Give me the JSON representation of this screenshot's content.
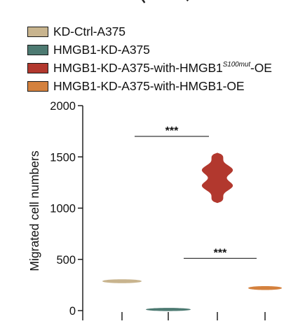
{
  "chart_data": {
    "type": "violin",
    "ylabel": "Migrated cell numbers",
    "ylim": [
      0,
      2000
    ],
    "yticks": [
      "0",
      "500",
      "1000",
      "1500",
      "2000"
    ],
    "cropped_header_glyphs": [
      "R",
      "r"
    ],
    "series": [
      {
        "name_parts": [
          "KD-Ctrl-A375"
        ],
        "color": "#c8b48e",
        "median": 288,
        "min": 262,
        "max": 312
      },
      {
        "name_parts": [
          "HMGB1-KD-A375"
        ],
        "color": "#4d7a72",
        "median": 5,
        "min": 0,
        "max": 22
      },
      {
        "name_parts": [
          "HMGB1-KD-A375-with-HMGB1",
          "S100mut",
          "-OE"
        ],
        "color": "#b2382e",
        "median": 1300,
        "min": 1050,
        "max": 1540
      },
      {
        "name_parts": [
          "HMGB1-KD-A375-with-HMGB1-OE"
        ],
        "color": "#d4813e",
        "median": 222,
        "min": 195,
        "max": 245
      }
    ],
    "significance": [
      {
        "from": 1,
        "to": 2,
        "y": 1700,
        "label": "***"
      },
      {
        "from": 2,
        "to": 3,
        "y": 510,
        "label": "***"
      }
    ]
  }
}
